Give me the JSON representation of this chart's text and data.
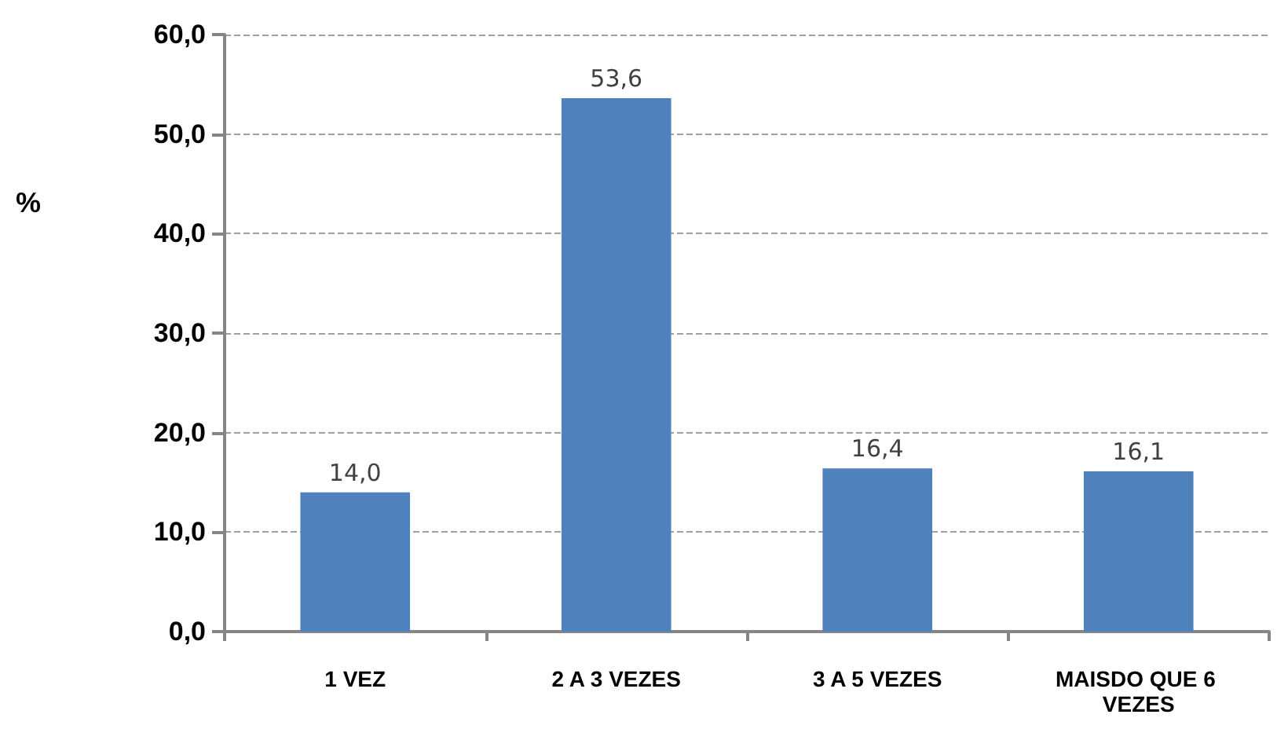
{
  "chart_data": {
    "type": "bar",
    "ylabel": "%",
    "categories": [
      "1 VEZ",
      "2 A 3 VEZES",
      "3 A 5 VEZES",
      "MAISDO QUE 6 VEZES"
    ],
    "values": [
      14.0,
      53.6,
      16.4,
      16.1
    ],
    "value_labels": [
      "14,0",
      "53,6",
      "16,4",
      "16,1"
    ],
    "color": "#4f81bd",
    "ylim": [
      0,
      60
    ],
    "yticks": [
      {
        "value": 0,
        "label": "0,0"
      },
      {
        "value": 10,
        "label": "10,0"
      },
      {
        "value": 20,
        "label": "20,0"
      },
      {
        "value": 30,
        "label": "30,0"
      },
      {
        "value": 40,
        "label": "40,0"
      },
      {
        "value": 50,
        "label": "50,0"
      },
      {
        "value": 60,
        "label": "60,0"
      }
    ],
    "grid": "y"
  }
}
